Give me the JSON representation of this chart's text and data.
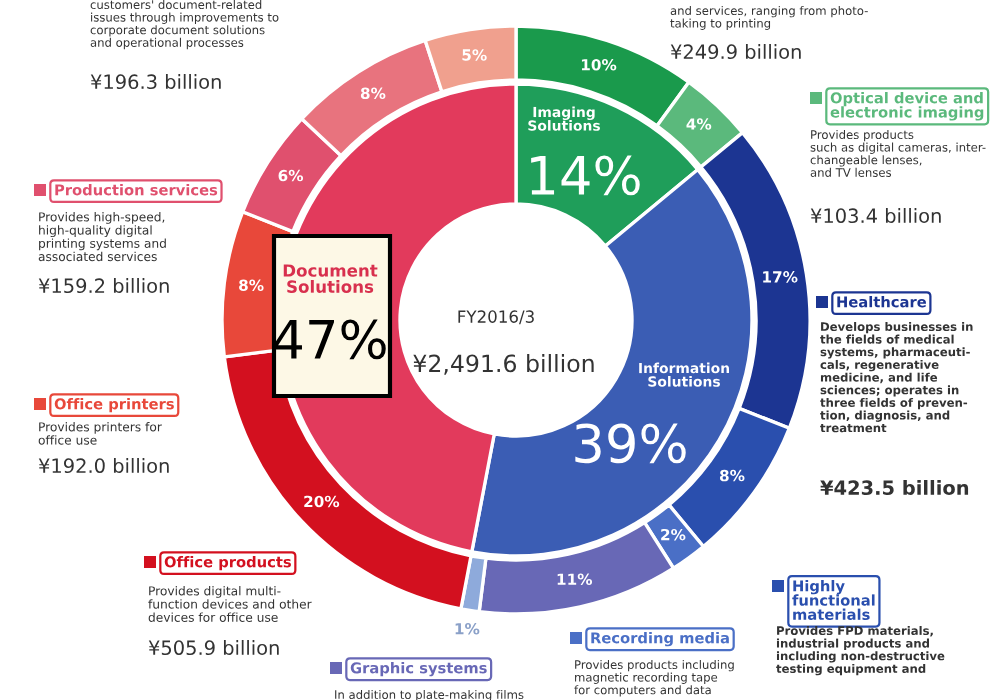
{
  "chart_data": {
    "type": "donut",
    "legend": "right",
    "categories": [
      "Imaging\nSolutions",
      "Information\nSolutions",
      "Document\nSolutions",
      null,
      "Optical device and\nelectronic imaging",
      "Healthcare",
      "Highly\nfunctional\nmaterials",
      "Recording media",
      "Graphic systems",
      null,
      "Office products",
      "Office printers",
      "Production services",
      null,
      null
    ],
    "series": [
      {
        "values": [
          14,
          39,
          47,
          null,
          null,
          null,
          null,
          null,
          null,
          null,
          null,
          null,
          null,
          null,
          null
        ],
        "value_labels": [
          "14%",
          "39%",
          "47%",
          null,
          null,
          null,
          null,
          null,
          null,
          null,
          null,
          null,
          null,
          null,
          null
        ],
        "colors": [
          "#1f9e5a",
          "#3b5db4",
          "#e23a5c",
          null,
          null,
          null,
          null,
          null,
          null,
          null,
          null,
          null,
          null,
          null,
          null
        ]
      },
      {
        "values": [
          null,
          null,
          null,
          10,
          4,
          17,
          8,
          2,
          11,
          1,
          20,
          8,
          6,
          8,
          5
        ],
        "value_labels": [
          null,
          null,
          null,
          "10%",
          "4%",
          "17%",
          "8%",
          "2%",
          "11%",
          "1%",
          "20%",
          "8%",
          "6%",
          "8%",
          "5%"
        ],
        "colors": [
          null,
          null,
          null,
          "#1a9a4c",
          "#5bb97c",
          "#1c3592",
          "#2a4fae",
          "#4a6fc6",
          "#6868b6",
          "#8eaadb",
          "#d3101f",
          "#e8483a",
          "#e0506e",
          "#e8737e",
          "#f0a08e"
        ]
      }
    ],
    "annotations": [
      "FY2016/3",
      "¥2,491.6 billion",
      "customers' document-related\nissues through improvements to\ncorporate document solutions\nand operational processes",
      "¥196.3 billion",
      "and services, ranging from photo-\ntaking to printing",
      "¥249.9 billion",
      "Provides products\nsuch as digital cameras, inter-\nchangeable lenses,\nand TV lenses",
      "¥103.4 billion",
      "Develops businesses in\nthe fields of medical\nsystems, pharmaceuti-\ncals, regenerative\nmedicine, and life\nsciences; operates in\nthree fields of preven-\ntion, diagnosis, and\ntreatment",
      "¥423.5 billion",
      "Provides FPD materials,\nindustrial products and\nincluding non-destructive\ntesting equipment and",
      "Provides products including\nmagnetic recording tape\nfor computers and data",
      "In addition to plate-making films",
      "Provides digital multi-\nfunction devices and other\ndevices for office use",
      "¥505.9 billion",
      "Provides printers for\noffice use",
      "¥192.0 billion",
      "Provides high-speed,\nhigh-quality digital\nprinting systems and\nassociated services",
      "¥159.2 billion"
    ]
  }
}
